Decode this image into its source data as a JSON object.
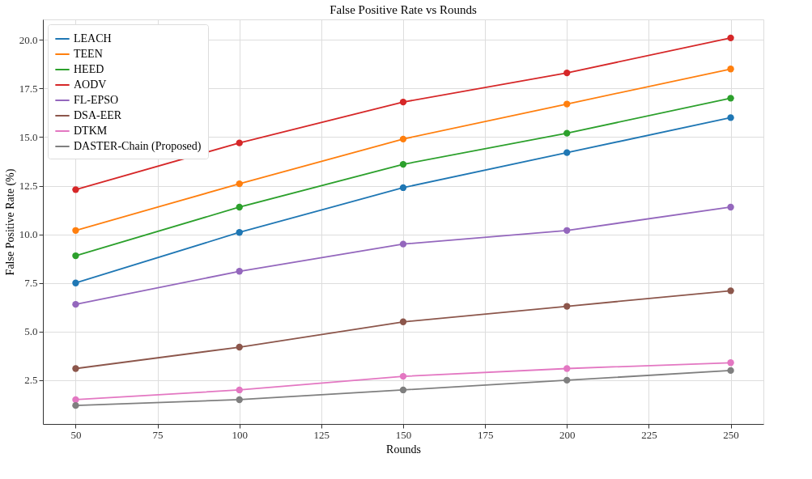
{
  "chart_data": {
    "type": "line",
    "title": "False Positive Rate vs Rounds",
    "xlabel": "Rounds",
    "ylabel": "False Positive Rate (%)",
    "x": [
      50,
      100,
      150,
      200,
      250
    ],
    "series": [
      {
        "name": "LEACH",
        "color": "#1f77b4",
        "values": [
          7.5,
          10.1,
          12.4,
          14.2,
          16.0
        ]
      },
      {
        "name": "TEEN",
        "color": "#ff7f0e",
        "values": [
          10.2,
          12.6,
          14.9,
          16.7,
          18.5
        ]
      },
      {
        "name": "HEED",
        "color": "#2ca02c",
        "values": [
          8.9,
          11.4,
          13.6,
          15.2,
          17.0
        ]
      },
      {
        "name": "AODV",
        "color": "#d62728",
        "values": [
          12.3,
          14.7,
          16.8,
          18.3,
          20.1
        ]
      },
      {
        "name": "FL-EPSO",
        "color": "#9467bd",
        "values": [
          6.4,
          8.1,
          9.5,
          10.2,
          11.4
        ]
      },
      {
        "name": "DSA-EER",
        "color": "#8c564b",
        "values": [
          3.1,
          4.2,
          5.5,
          6.3,
          7.1
        ]
      },
      {
        "name": "DTKM",
        "color": "#e377c2",
        "values": [
          1.5,
          2.0,
          2.7,
          3.1,
          3.4
        ]
      },
      {
        "name": "DASTER-Chain (Proposed)",
        "color": "#7f7f7f",
        "values": [
          1.2,
          1.5,
          2.0,
          2.5,
          3.0
        ]
      }
    ],
    "xlim": [
      40,
      260
    ],
    "xticks": [
      50,
      75,
      100,
      125,
      150,
      175,
      200,
      225,
      250
    ],
    "ylim": [
      0.25,
      21.05
    ],
    "yticks": [
      2.5,
      {
        "value": 5,
        "label": "5.0"
      },
      7.5,
      {
        "value": 10,
        "label": "10.0"
      },
      12.5,
      {
        "value": 15,
        "label": "15.0"
      },
      17.5,
      {
        "value": 20,
        "label": "20.0"
      }
    ],
    "grid": true,
    "legend": "top left",
    "marker": "circle",
    "line_style": "solid"
  }
}
